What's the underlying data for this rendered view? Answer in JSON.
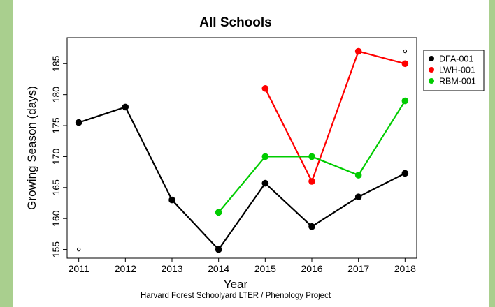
{
  "page": {
    "background_color": "#a9cf8e",
    "panel_color": "#ffffff"
  },
  "chart_data": {
    "type": "line",
    "title": "All Schools",
    "xlabel": "Year",
    "ylabel": "Growing Season (days)",
    "caption": "Harvard Forest Schoolyard LTER / Phenology Project",
    "xlim": [
      2010.75,
      2018.25
    ],
    "ylim": [
      153.6,
      189.2
    ],
    "x_ticks": [
      2011,
      2012,
      2013,
      2014,
      2015,
      2016,
      2017,
      2018
    ],
    "y_ticks": [
      155,
      160,
      165,
      170,
      175,
      180,
      185
    ],
    "grid": false,
    "legend_position": "outside right",
    "series": [
      {
        "name": "DFA-001",
        "color": "#000000",
        "x": [
          2011,
          2012,
          2013,
          2014,
          2015,
          2016,
          2017,
          2018
        ],
        "values": [
          175.5,
          178,
          163,
          155,
          165.7,
          158.7,
          163.5,
          167.3
        ]
      },
      {
        "name": "LWH-001",
        "color": "#ff0000",
        "x": [
          2015,
          2016,
          2017,
          2018
        ],
        "values": [
          181,
          166,
          187,
          185
        ]
      },
      {
        "name": "RBM-001",
        "color": "#00cc00",
        "x": [
          2014,
          2015,
          2016,
          2017,
          2018
        ],
        "values": [
          161,
          170,
          170,
          167,
          179
        ]
      }
    ],
    "open_points": [
      {
        "x": 2011,
        "y": 155
      },
      {
        "x": 2018,
        "y": 187
      }
    ]
  }
}
